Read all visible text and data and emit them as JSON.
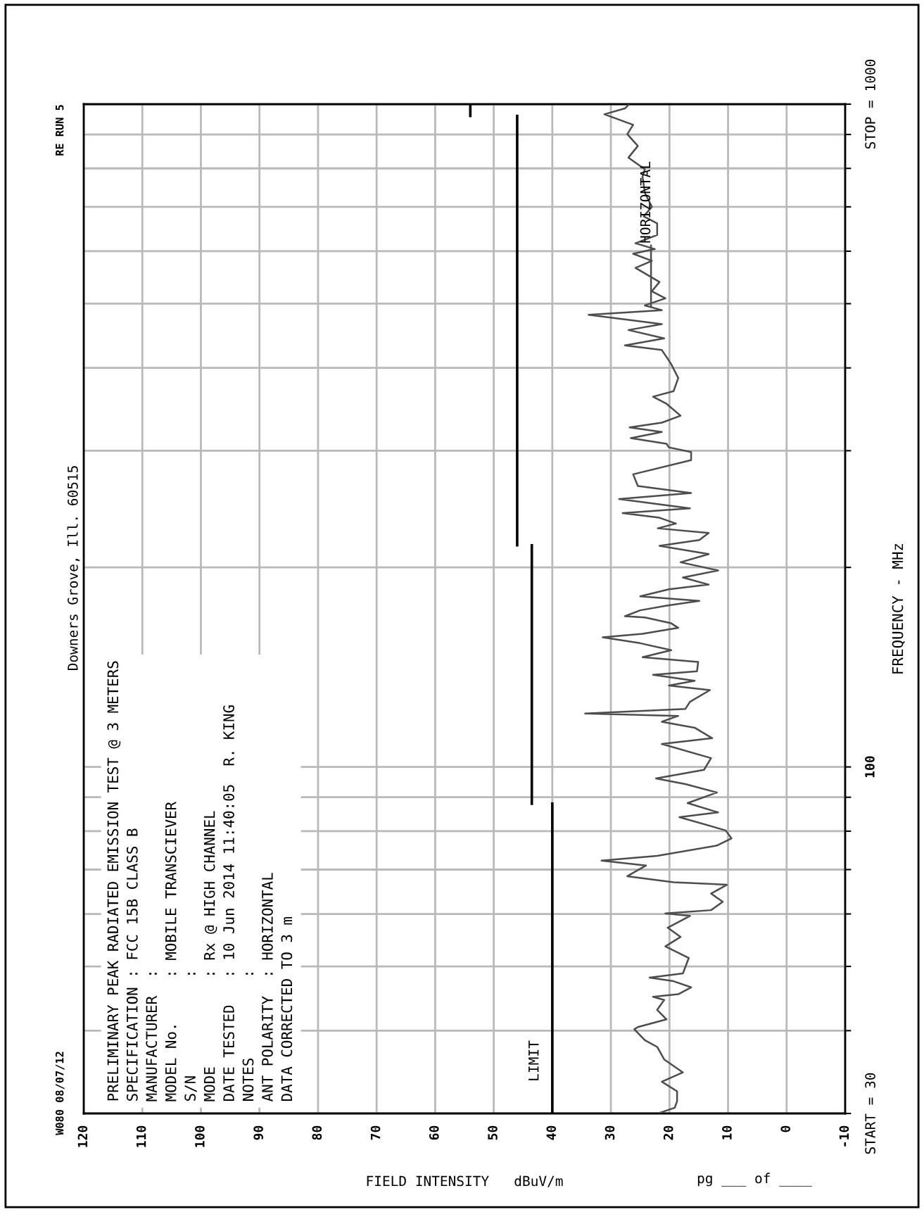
{
  "chart_data": {
    "type": "line",
    "orientation": "horizontal",
    "subtitle": "Downers Grove, Ill. 60515",
    "xlabel": "FIELD INTENSITY   dBuV/m",
    "ylabel": "FREQUENCY - MHz",
    "xlim": [
      120,
      -10
    ],
    "xticks": [
      120,
      110,
      100,
      90,
      80,
      70,
      60,
      50,
      40,
      30,
      20,
      10,
      0,
      -10
    ],
    "log": "y",
    "ylim": [
      30,
      1000
    ],
    "yticks": [
      {
        "value": 30,
        "label": "START = 30"
      },
      {
        "value": 40,
        "label": null
      },
      {
        "value": 50,
        "label": null
      },
      {
        "value": 60,
        "label": null
      },
      {
        "value": 70,
        "label": null
      },
      {
        "value": 80,
        "label": null
      },
      {
        "value": 90,
        "label": null
      },
      100,
      {
        "value": 200,
        "label": null
      },
      {
        "value": 300,
        "label": null
      },
      {
        "value": 400,
        "label": null
      },
      {
        "value": 500,
        "label": null
      },
      {
        "value": 600,
        "label": null
      },
      {
        "value": 700,
        "label": null
      },
      {
        "value": 800,
        "label": null
      },
      {
        "value": 900,
        "label": null
      },
      {
        "value": 1000,
        "label": "STOP = 1000"
      }
    ],
    "grid": true,
    "legend": "right",
    "series": [
      {
        "name": "HORIZONTAL",
        "color": "#4d4d4d",
        "x": [
          30.1,
          30.6,
          31.3,
          32.4,
          33.5,
          34.6,
          36.2,
          37.8,
          38.7,
          40.2,
          40.5,
          41.6,
          43.0,
          44.5,
          45.0,
          45.4,
          46.5,
          47.5,
          48.1,
          48.8,
          51.5,
          53.6,
          55.4,
          57.2,
          59.6,
          60.1,
          60.8,
          62.6,
          64.4,
          66.4,
          67.0,
          68.4,
          71.0,
          72.2,
          73.4,
          76.1,
          78.0,
          80.2,
          84.0,
          85.4,
          88.2,
          91.5,
          94.2,
          96.1,
          99.0,
          103.1,
          108.3,
          110.5,
          114.6,
          117.0,
          119.4,
          120.4,
          122.3,
          125.4,
          130.6,
          132.7,
          134.9,
          137.7,
          139.4,
          144.0,
          146.4,
          150.0,
          153.7,
          156.9,
          158.8,
          162.1,
          164.7,
          168.1,
          168.8,
          172.3,
          175.1,
          178.0,
          180.9,
          185.4,
          188.4,
          193.1,
          197.9,
          203.6,
          209.5,
          215.6,
          220.0,
          225.4,
          229.1,
          232.9,
          237.7,
          241.6,
          245.6,
          253.7,
          259.0,
          265.4,
          276.4,
          290.3,
          298.6,
          303.5,
          307.3,
          313.4,
          320.2,
          325.3,
          330.7,
          338.8,
          353.1,
          361.9,
          369.0,
          386.1,
          405.3,
          425.6,
          432.6,
          443.3,
          456.3,
          465.7,
          481.0,
          488.9,
          497.0,
          509.4,
          522.1,
          539.1,
          566.2,
          580.2,
          594.7,
          604.5,
          616.8,
          634.7,
          661.0,
          677.3,
          699.9,
          734.9,
          778.2,
          797.4,
          830.6,
          864.9,
          900.9,
          930.6,
          965.5,
          985.4,
          997.5
        ],
        "values": [
          21.5,
          19.1,
          18.7,
          18.7,
          21.3,
          17.7,
          20.9,
          22.1,
          24.2,
          26.0,
          25.4,
          20.5,
          22.1,
          20.9,
          22.8,
          18.5,
          16.3,
          19.3,
          23.4,
          17.7,
          16.7,
          20.7,
          18.1,
          20.3,
          16.5,
          20.7,
          12.9,
          10.9,
          12.9,
          10.2,
          19.3,
          27.2,
          24.0,
          31.6,
          22.1,
          11.9,
          9.4,
          10.4,
          18.3,
          11.7,
          16.9,
          11.9,
          17.3,
          22.3,
          14.1,
          12.9,
          21.3,
          12.7,
          15.7,
          21.3,
          18.5,
          34.4,
          17.3,
          16.5,
          13.1,
          20.1,
          15.7,
          22.8,
          15.3,
          15.1,
          24.6,
          19.7,
          25.0,
          31.4,
          24.6,
          18.5,
          19.7,
          24.2,
          27.6,
          25.0,
          20.5,
          14.9,
          25.0,
          20.1,
          13.3,
          17.7,
          11.7,
          18.1,
          13.3,
          21.7,
          14.9,
          13.3,
          22.0,
          18.9,
          21.7,
          28.0,
          16.5,
          28.6,
          16.3,
          25.4,
          26.2,
          16.3,
          16.3,
          20.1,
          20.5,
          26.6,
          21.3,
          26.8,
          21.3,
          18.1,
          20.5,
          22.8,
          19.3,
          18.5,
          19.7,
          21.3,
          27.6,
          20.9,
          27.0,
          21.3,
          33.8,
          21.3,
          24.2,
          20.7,
          23.0,
          21.7,
          25.8,
          23.0,
          26.2,
          22.5,
          25.8,
          22.1,
          22.1,
          24.4,
          23.0,
          24.2,
          24.6,
          24.2,
          27.0,
          25.4,
          27.2,
          26.2,
          31.1,
          27.6,
          27.0
        ]
      },
      {
        "name": "LIMIT",
        "color": "#000000",
        "x": [
          30,
          88
        ],
        "values": [
          40,
          40
        ]
      },
      {
        "color": "#000000",
        "x": [
          88,
          216
        ],
        "values": [
          43.5,
          43.5
        ]
      },
      {
        "color": "#000000",
        "x": [
          216,
          960
        ],
        "values": [
          46,
          46
        ]
      },
      {
        "color": "#000000",
        "x": [
          960,
          1000
        ],
        "values": [
          54,
          54
        ]
      }
    ],
    "annotations": [
      "W080 08/07/12",
      "RE RUN 5",
      "pg ___ of ____",
      "PRELIMINARY PEAK RADIATED EMISSION TEST @ 3 METERS",
      "SPECIFICATION : FCC 15B CLASS B",
      "MANUFACTURER  :",
      "MODEL No.     : MOBILE TRANSCIEVER",
      "S/N           :",
      "MODE          : Rx @ HIGH CHANNEL",
      "DATE TESTED   : 10 Jun 2014 11:40:05  R. KING",
      "NOTES         :",
      "ANT POLARITY  : HORIZONTAL",
      "DATA CORRECTED TO 3 m"
    ]
  }
}
